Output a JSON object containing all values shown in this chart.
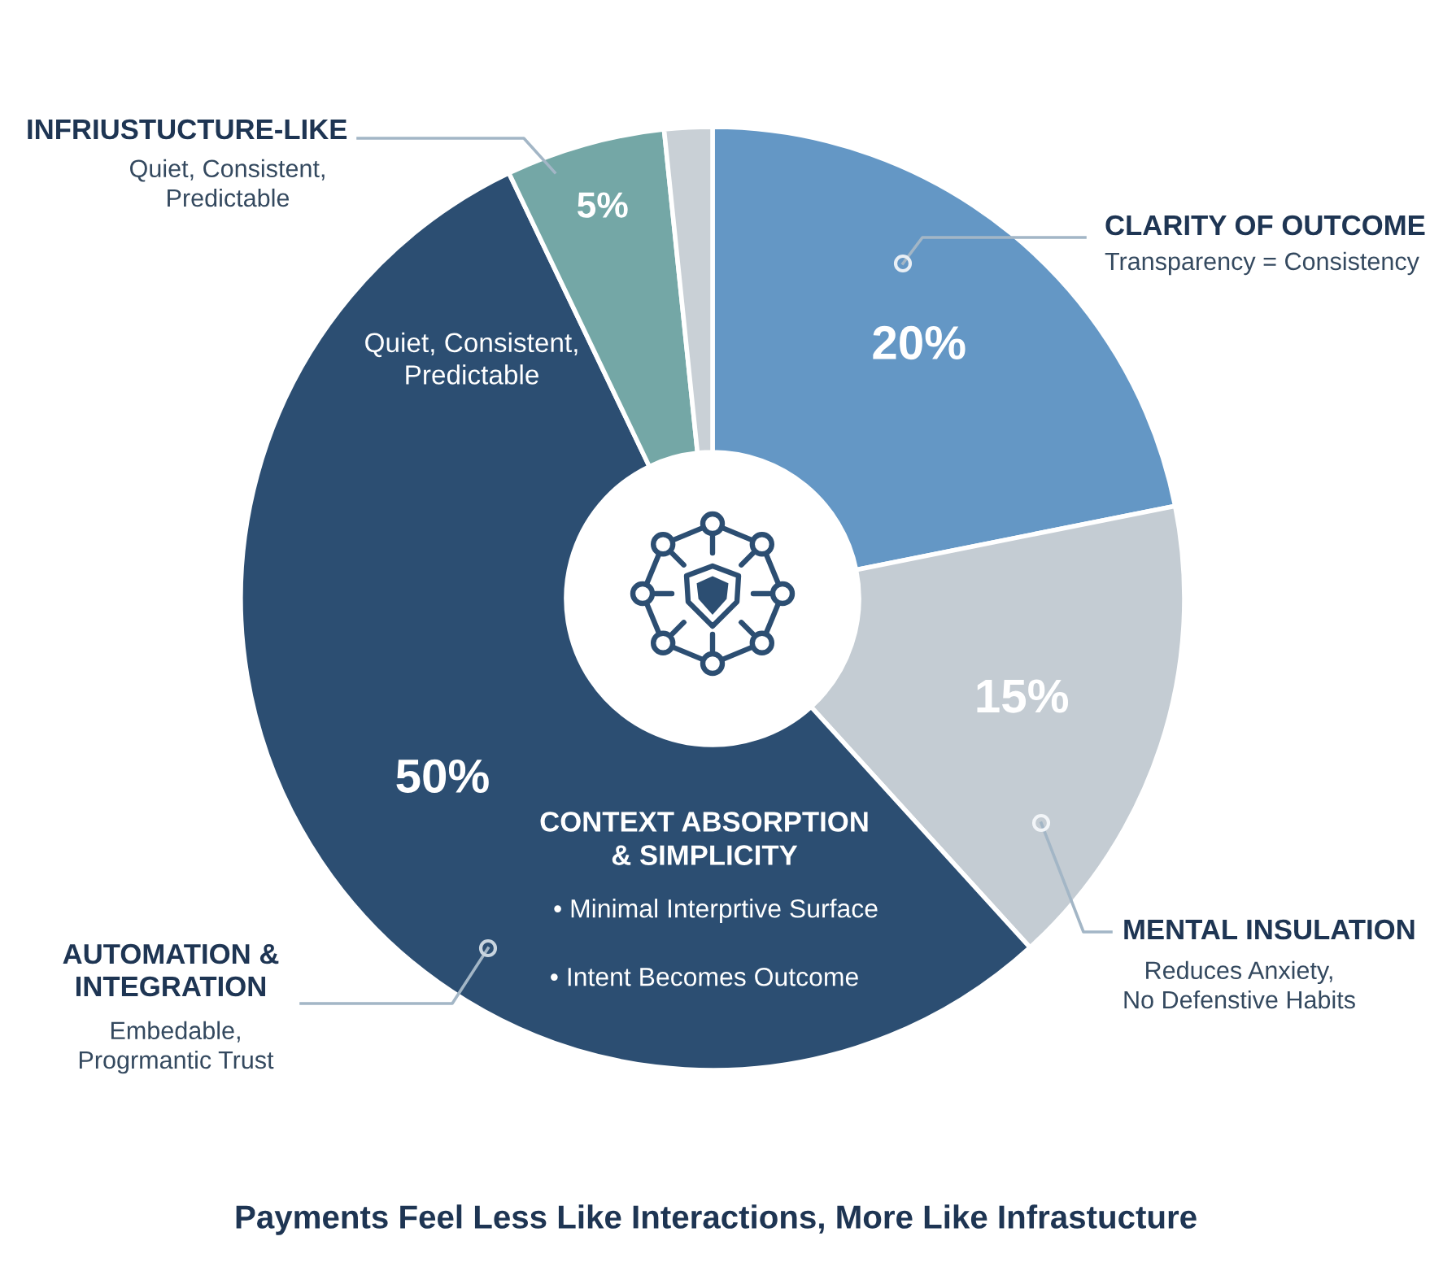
{
  "chart_data": {
    "type": "donut",
    "title": "Payments Feel Less Like Interactions, More Like Infrastucture",
    "categories": [
      "CLARITY OF OUTCOME",
      "MENTAL INSULATION",
      "AUTOMATION &\nINTEGRATION",
      "INFRIUSTUCTURE-LIKE",
      null
    ],
    "values": [
      20,
      15,
      50,
      5,
      1.5
    ],
    "colors": [
      "#6497c5",
      "#c4ccd3",
      "#2c4e72",
      "#74a7a6",
      "#c9d0d6"
    ],
    "value_labels": [
      "20%",
      "15%",
      "50%",
      "5%",
      null
    ],
    "annotations": [
      "Transparency = Consistency",
      "Reduces Anxiety,\nNo Defenstive Habits",
      "Embedable,\nProgrmantic Trust",
      "Quiet, Consistent,\nPredictable",
      "Quiet, Consistent,\nPredictable",
      "CONTEXT ABSORPTION\n& SIMPLICITY",
      "• Minimal Interprtive Surface",
      "• Intent Becomes Outcome"
    ]
  }
}
